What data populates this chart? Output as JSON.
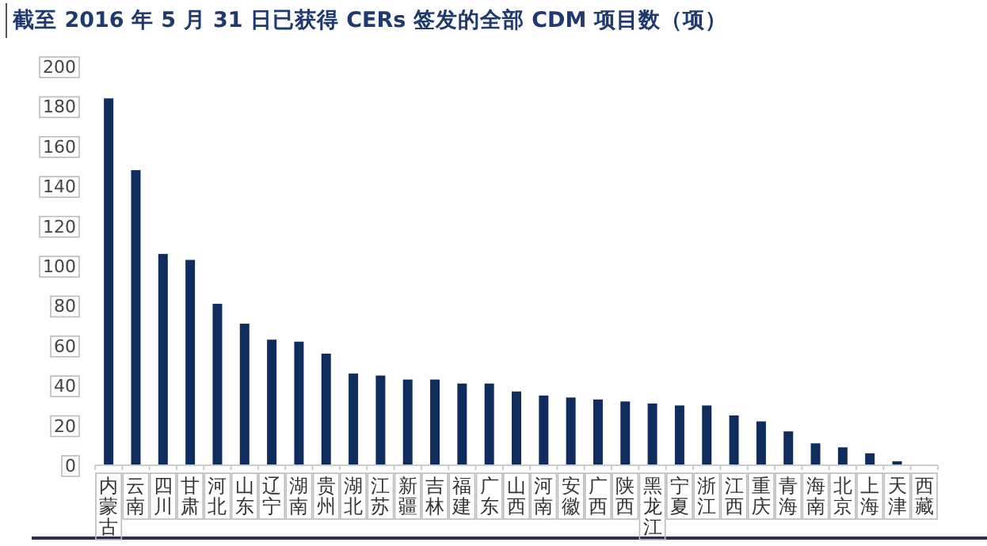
{
  "chart_data": {
    "type": "bar",
    "title": "截至 2016 年 5 月 31 日已获得 CERs 签发的全部 CDM 项目数（项）",
    "categories": [
      "内蒙古",
      "云南",
      "四川",
      "甘肃",
      "河北",
      "山东",
      "辽宁",
      "湖南",
      "贵州",
      "湖北",
      "江苏",
      "新疆",
      "吉林",
      "福建",
      "广东",
      "山西",
      "河南",
      "安徽",
      "广西",
      "陕西",
      "黑龙江",
      "宁夏",
      "浙江",
      "江西",
      "重庆",
      "青海",
      "海南",
      "北京",
      "上海",
      "天津",
      "西藏"
    ],
    "values": [
      184,
      148,
      106,
      103,
      81,
      71,
      63,
      62,
      56,
      46,
      45,
      43,
      43,
      41,
      41,
      37,
      35,
      34,
      33,
      32,
      31,
      30,
      30,
      25,
      22,
      17,
      11,
      9,
      6,
      2,
      0
    ],
    "color": "#0f2d5c",
    "ylim": [
      0,
      200
    ],
    "yticks": [
      0,
      20,
      40,
      60,
      80,
      100,
      120,
      140,
      160,
      180,
      200
    ],
    "grid": false
  }
}
